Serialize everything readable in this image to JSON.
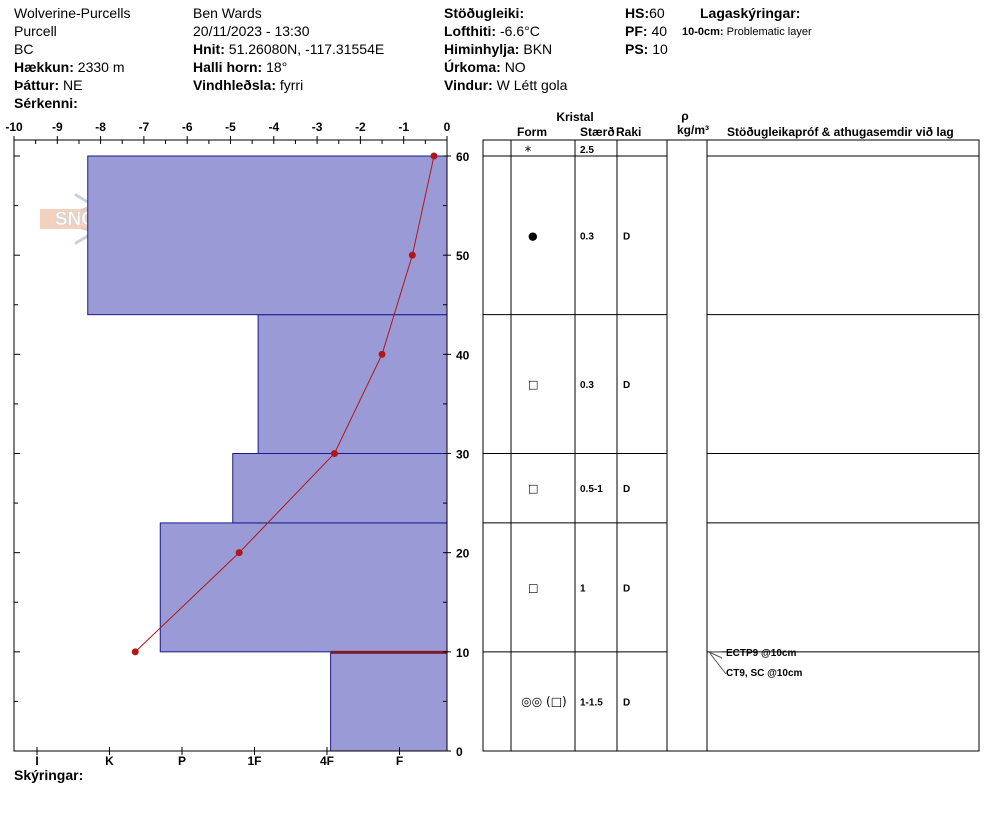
{
  "header": {
    "location": "Wolverine-Purcells",
    "range": "Purcell",
    "province": "BC",
    "elevation_label": "Hækkun:",
    "elevation_value": "2330 m",
    "aspect_label": "Þáttur:",
    "aspect_value": "NE",
    "features_label": "Sérkenni:",
    "observer": "Ben Wards",
    "datetime": "20/11/2023 - 13:30",
    "coords_label": "Hnit:",
    "coords_value": "51.26080N, -117.31554E",
    "slope_label": "Halli horn:",
    "slope_value": "18°",
    "wind_loading_label": "Vindhleðsla:",
    "wind_loading_value": "fyrri",
    "stability_label": "Stöðugleiki:",
    "air_temp_label": "Lofthiti:",
    "air_temp_value": "-6.6°C",
    "sky_label": "Himinhylja:",
    "sky_value": "BKN",
    "precip_label": "Úrkoma:",
    "precip_value": "NO",
    "wind_label": "Vindur:",
    "wind_value": "W Létt gola",
    "hs_label": "HS:",
    "hs_value": "60",
    "pf_label": "PF:",
    "pf_value": "40",
    "ps_label": "PS:",
    "ps_value": "10",
    "legend_title": "Lagaskýringar:",
    "legend_range": "10-0cm:",
    "legend_text": "Problematic layer"
  },
  "footer": {
    "notes_label": "Skýringar:"
  },
  "logo": {
    "text": "SNOW PILOT"
  },
  "table": {
    "crystal_header": "Kristal",
    "form_header": "Form",
    "size_header": "Stærð",
    "moisture_header": "Raki",
    "rho_header": "ρ",
    "density_unit": "kg/m³",
    "comments_header": "Stöðugleikapróf & athugasemdir við lag",
    "surface_row": {
      "form": "*",
      "size": "2.5"
    },
    "layers": [
      {
        "form": "●",
        "size": "0.3",
        "moisture": "D"
      },
      {
        "form": "□",
        "size": "0.3",
        "moisture": "D"
      },
      {
        "form": "□",
        "size": "0.5-1",
        "moisture": "D"
      },
      {
        "form": "□",
        "size": "1",
        "moisture": "D"
      },
      {
        "form": "◎◎ (□)",
        "size": "1-1.5",
        "moisture": "D"
      }
    ],
    "tests": [
      "ECTP9 @10cm",
      "CT9, SC @10cm"
    ]
  },
  "chart_data": {
    "type": "bar",
    "top_axis_label": "",
    "temperature_ticks": [
      -10,
      -9,
      -8,
      -7,
      -6,
      -5,
      -4,
      -3,
      -2,
      -1,
      0
    ],
    "temperature_range": [
      -10,
      0
    ],
    "height_ticks": [
      0,
      10,
      20,
      30,
      40,
      50,
      60
    ],
    "height_range": [
      0,
      60
    ],
    "hardness_ticks": [
      "I",
      "K",
      "P",
      "1F",
      "4F",
      "F"
    ],
    "hardness_layers": [
      {
        "bottom": 0,
        "top": 10,
        "hardness_index": 4.05
      },
      {
        "bottom": 10,
        "top": 23,
        "hardness_index": 1.7
      },
      {
        "bottom": 23,
        "top": 30,
        "hardness_index": 2.7
      },
      {
        "bottom": 30,
        "top": 44,
        "hardness_index": 3.05
      },
      {
        "bottom": 44,
        "top": 60,
        "hardness_index": 0.7
      }
    ],
    "problem_layer_height": 10,
    "temperature_profile": [
      {
        "height": 60,
        "temp": -0.3
      },
      {
        "height": 50,
        "temp": -0.8
      },
      {
        "height": 40,
        "temp": -1.5
      },
      {
        "height": 30,
        "temp": -2.6
      },
      {
        "height": 20,
        "temp": -4.8
      },
      {
        "height": 10,
        "temp": -7.2
      }
    ],
    "colors": {
      "layer_fill": "#9a9ad6",
      "layer_stroke": "#1a1a8c",
      "profile": "#b01818",
      "problem_line": "#7a1a2a"
    }
  }
}
